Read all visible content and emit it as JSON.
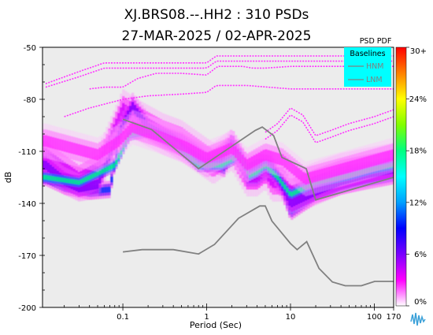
{
  "chart_data": {
    "type": "heatmap",
    "title": "XJ.BRS08.--.HH2 : 310 PSDs",
    "subtitle": "27-MAR-2025 / 02-APR-2025",
    "xlabel": "Period (Sec)",
    "ylabel": "dB",
    "x_scale": "log",
    "xlim": [
      0.011,
      170
    ],
    "ylim": [
      -200,
      -50
    ],
    "x_ticks": [
      {
        "value": 0.1,
        "label": "0.1"
      },
      {
        "value": 1,
        "label": "1"
      },
      {
        "value": 10,
        "label": "10"
      },
      {
        "value": 100,
        "label": "100"
      },
      {
        "value": 170,
        "label": "170"
      }
    ],
    "y_ticks": [
      {
        "value": -50,
        "label": "-50"
      },
      {
        "value": -80,
        "label": "-80"
      },
      {
        "value": -110,
        "label": "-110"
      },
      {
        "value": -140,
        "label": "-140"
      },
      {
        "value": -170,
        "label": "-170"
      },
      {
        "value": -200,
        "label": "-200"
      }
    ],
    "colorbar": {
      "title": "PSD PDF",
      "unit": "%",
      "range": [
        0,
        30
      ],
      "ticks": [
        {
          "value": 0,
          "label": "0%"
        },
        {
          "value": 6,
          "label": "6%"
        },
        {
          "value": 12,
          "label": "12%"
        },
        {
          "value": 18,
          "label": "18%"
        },
        {
          "value": 24,
          "label": "24%"
        },
        {
          "value": 30,
          "label": "30+"
        }
      ],
      "colors": [
        "#ffffff",
        "#ff00ff",
        "#7a00ff",
        "#0000ff",
        "#00a0ff",
        "#00ffff",
        "#00ff80",
        "#80ff00",
        "#ffff00",
        "#ff8000",
        "#ff0000"
      ]
    },
    "legend": {
      "title": "Baselines",
      "position": "top-right",
      "background": "#00ffff",
      "entries": [
        "HNM",
        "LNM"
      ]
    },
    "series": [
      {
        "name": "HNM",
        "color": "#808080",
        "x": [
          0.1,
          0.22,
          0.8,
          3.8,
          4.6,
          6.3,
          7.9,
          15.4,
          20,
          170
        ],
        "y": [
          -91.5,
          -97.4,
          -120,
          -97.9,
          -96,
          -101,
          -113.5,
          -120,
          -138,
          -125
        ]
      },
      {
        "name": "LNM",
        "color": "#808080",
        "x": [
          0.1,
          0.17,
          0.4,
          0.8,
          1.24,
          2.4,
          4.3,
          5,
          6,
          10,
          12,
          15.6,
          21.9,
          31.6,
          45,
          70,
          101,
          154,
          170
        ],
        "y": [
          -168,
          -166.7,
          -166.7,
          -169.2,
          -163.7,
          -148.6,
          -141.5,
          -141.5,
          -150.2,
          -163.2,
          -166.7,
          -162.1,
          -177.5,
          -185.3,
          -187.5,
          -187.5,
          -185,
          -185,
          -185
        ]
      }
    ],
    "density_bands": [
      {
        "x": [
          0.012,
          0.02,
          0.04,
          0.07,
          0.1,
          0.15,
          0.3,
          0.5,
          0.8,
          1.2,
          1.6,
          2,
          2.5,
          3,
          4,
          5,
          6,
          8,
          10,
          20,
          40,
          80,
          170
        ],
        "y": [
          -125,
          -130,
          -133,
          -132,
          -88,
          -93,
          -100,
          -104,
          -111,
          -117,
          -120,
          -110,
          -115,
          -127,
          -127,
          -123,
          -126,
          -132,
          -145,
          -135,
          -130,
          -127,
          -124
        ],
        "spread": 5,
        "level": 10
      },
      {
        "x": [
          0.012,
          0.02,
          0.03,
          0.05,
          0.07,
          0.1,
          0.15,
          0.3,
          0.5,
          0.8,
          1.2,
          2,
          3,
          4,
          5,
          6,
          8,
          10,
          20,
          40,
          80,
          170
        ],
        "y": [
          -112,
          -120,
          -126,
          -120,
          -104,
          -86,
          -92,
          -100,
          -104,
          -111,
          -117,
          -109,
          -124,
          -124,
          -120,
          -127,
          -127,
          -134,
          -128,
          -123,
          -120,
          -117
        ],
        "spread": 12,
        "level": 4
      },
      {
        "x": [
          0.012,
          0.02,
          0.03,
          0.05,
          0.07,
          0.1,
          0.13,
          0.2,
          0.35,
          0.6,
          1,
          1.5,
          2,
          2.5,
          3,
          4,
          5,
          6,
          8,
          10,
          20,
          40,
          80,
          170
        ],
        "y": [
          -118,
          -127,
          -131,
          -129,
          -112,
          -95,
          -84,
          -96,
          -103,
          -110,
          -117,
          -114,
          -105,
          -113,
          -120,
          -117,
          -117,
          -118,
          -130,
          -140,
          -133,
          -127,
          -123,
          -120
        ],
        "spread": 8,
        "level": 6
      },
      {
        "x": [
          0.012,
          0.03,
          0.08,
          0.12,
          0.2,
          0.4,
          0.8,
          1.5,
          2.5,
          3.2,
          4,
          5,
          7,
          10,
          20,
          50,
          100,
          170
        ],
        "y": [
          -125,
          -128,
          -118,
          -100,
          -98,
          -104,
          -118,
          -118,
          -112,
          -124,
          -122,
          -118,
          -125,
          -135,
          -128,
          -124,
          -120,
          -118
        ],
        "spread": 4,
        "level": 18
      },
      {
        "x": [
          0.012,
          0.05,
          0.09,
          0.13,
          0.3,
          0.6,
          1,
          2,
          3,
          5,
          8,
          15,
          30,
          60,
          170
        ],
        "y": [
          -104,
          -112,
          -104,
          -96,
          -102,
          -108,
          -114,
          -108,
          -118,
          -112,
          -115,
          -126,
          -122,
          -118,
          -112
        ],
        "spread": 10,
        "level": 2.5
      }
    ],
    "sparse_lines": [
      {
        "x": [
          0.04,
          0.06,
          0.1,
          0.15,
          0.25,
          0.5,
          1,
          1.35,
          2,
          2.7,
          3.5,
          5,
          10,
          20,
          50,
          100,
          170
        ],
        "y": [
          -74,
          -73,
          -73,
          -68,
          -65,
          -65,
          -66,
          -61,
          -61,
          -61,
          -62,
          -62,
          -61,
          -61,
          -61,
          -61,
          -61
        ]
      },
      {
        "x": [
          0.012,
          0.03,
          0.06,
          0.1,
          0.3,
          1,
          1.3,
          3,
          10,
          30,
          100,
          170
        ],
        "y": [
          -71,
          -64,
          -59,
          -59,
          -59,
          -59,
          -55,
          -55,
          -55,
          -55,
          -55,
          -55
        ]
      },
      {
        "x": [
          0.012,
          0.03,
          0.06,
          0.1,
          0.3,
          1,
          1.3,
          3,
          10,
          30,
          100,
          170
        ],
        "y": [
          -73,
          -67,
          -62,
          -62,
          -62,
          -62,
          -58,
          -58,
          -58,
          -58,
          -58,
          -58
        ]
      },
      {
        "x": [
          0.02,
          0.04,
          0.07,
          0.1,
          0.2,
          0.5,
          1,
          1.3,
          3,
          10,
          30,
          100,
          170
        ],
        "y": [
          -90,
          -85,
          -82,
          -80,
          -78,
          -77,
          -76,
          -72,
          -72,
          -74,
          -74,
          -74,
          -74
        ]
      },
      {
        "x": [
          5,
          7,
          10,
          14,
          20,
          30,
          50,
          100,
          170
        ],
        "y": [
          -99,
          -94,
          -85,
          -89,
          -101,
          -98,
          -94,
          -90,
          -86
        ]
      },
      {
        "x": [
          5,
          7,
          10,
          14,
          20,
          30,
          50,
          100,
          170
        ],
        "y": [
          -103,
          -98,
          -89,
          -93,
          -105,
          -102,
          -98,
          -94,
          -90
        ]
      }
    ]
  }
}
